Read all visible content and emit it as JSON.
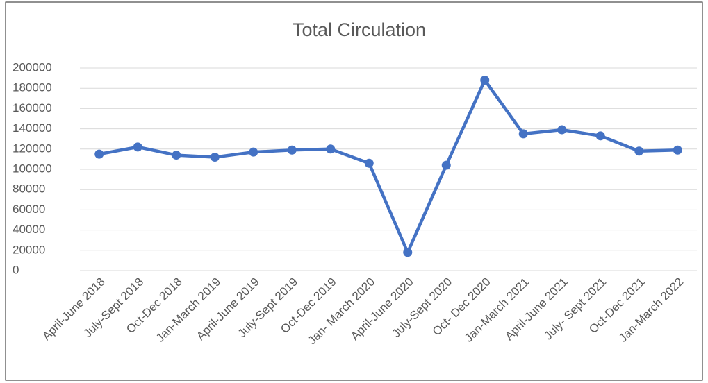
{
  "chart_data": {
    "type": "line",
    "title": "Total Circulation",
    "categories": [
      "April-June 2018",
      "July-Sept 2018",
      "Oct-Dec 2018",
      "Jan-March 2019",
      "April-June 2019",
      "July-Sept 2019",
      "Oct-Dec 2019",
      "Jan- March 2020",
      "April-June 2020",
      "July-Sept 2020",
      "Oct- Dec 2020",
      "Jan-March 2021",
      "April-June 2021",
      "July- Sept 2021",
      "Oct-Dec 2021",
      "Jan-March 2022"
    ],
    "series": [
      {
        "name": "Total Circulation",
        "color": "#4472c4",
        "values": [
          115000,
          122000,
          114000,
          112000,
          117000,
          119000,
          120000,
          106000,
          18000,
          104000,
          188000,
          135000,
          139000,
          133000,
          118000,
          119000
        ]
      }
    ],
    "ylim": [
      0,
      200000
    ],
    "yticks": [
      0,
      20000,
      40000,
      60000,
      80000,
      100000,
      120000,
      140000,
      160000,
      180000,
      200000
    ],
    "grid": true
  }
}
